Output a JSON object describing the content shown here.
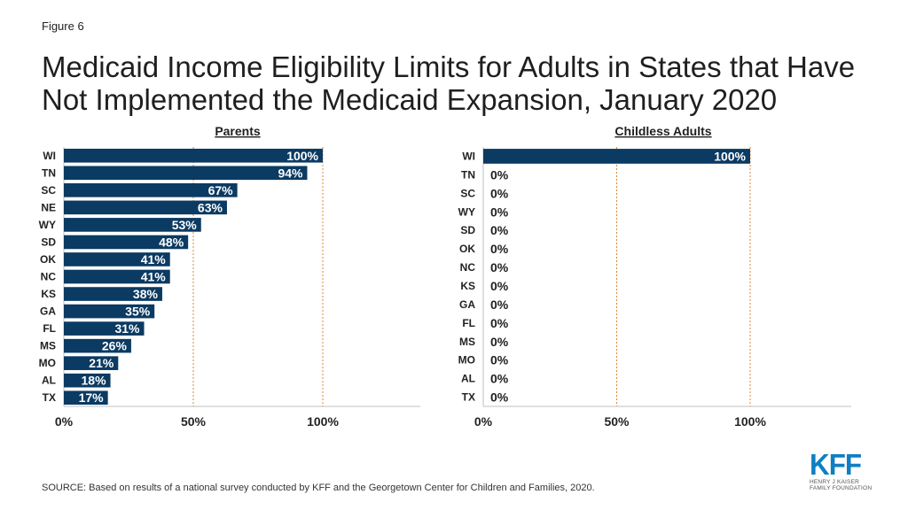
{
  "figure_label": "Figure 6",
  "title_line1": "Medicaid Income Eligibility Limits for Adults in States that Have",
  "title_line2": "Not Implemented the Medicaid Expansion, January 2020",
  "source": "SOURCE: Based on results of a national survey conducted by KFF and the Georgetown Center for Children and Families, 2020.",
  "logo": {
    "text": "KFF",
    "line1": "HENRY J KAISER",
    "line2": "FAMILY FOUNDATION",
    "color": "#0e7fc3"
  },
  "colors": {
    "bar": "#0b3a62",
    "reference_line": "#d9883a",
    "axis": "#bfbfbf"
  },
  "chart_data": [
    {
      "type": "bar",
      "orientation": "horizontal",
      "title": "Parents",
      "categories": [
        "WI",
        "TN",
        "SC",
        "NE",
        "WY",
        "SD",
        "OK",
        "NC",
        "KS",
        "GA",
        "FL",
        "MS",
        "MO",
        "AL",
        "TX"
      ],
      "values": [
        100,
        94,
        67,
        63,
        53,
        48,
        41,
        41,
        38,
        35,
        31,
        26,
        21,
        18,
        17
      ],
      "labels": [
        "100%",
        "94%",
        "67%",
        "63%",
        "53%",
        "48%",
        "41%",
        "41%",
        "38%",
        "35%",
        "31%",
        "26%",
        "21%",
        "18%",
        "17%"
      ],
      "xlim": [
        0,
        138
      ],
      "ticks": [
        0,
        50,
        100
      ],
      "tick_labels": [
        "0%",
        "50%",
        "100%"
      ],
      "reference_lines": [
        50,
        100
      ]
    },
    {
      "type": "bar",
      "orientation": "horizontal",
      "title": "Childless Adults",
      "categories": [
        "WI",
        "TN",
        "SC",
        "WY",
        "SD",
        "OK",
        "NC",
        "KS",
        "GA",
        "FL",
        "MS",
        "MO",
        "AL",
        "TX"
      ],
      "values": [
        100,
        0,
        0,
        0,
        0,
        0,
        0,
        0,
        0,
        0,
        0,
        0,
        0,
        0
      ],
      "labels": [
        "100%",
        "0%",
        "0%",
        "0%",
        "0%",
        "0%",
        "0%",
        "0%",
        "0%",
        "0%",
        "0%",
        "0%",
        "0%",
        "0%"
      ],
      "xlim": [
        0,
        138
      ],
      "ticks": [
        0,
        50,
        100
      ],
      "tick_labels": [
        "0%",
        "50%",
        "100%"
      ],
      "reference_lines": [
        50,
        100
      ]
    }
  ]
}
